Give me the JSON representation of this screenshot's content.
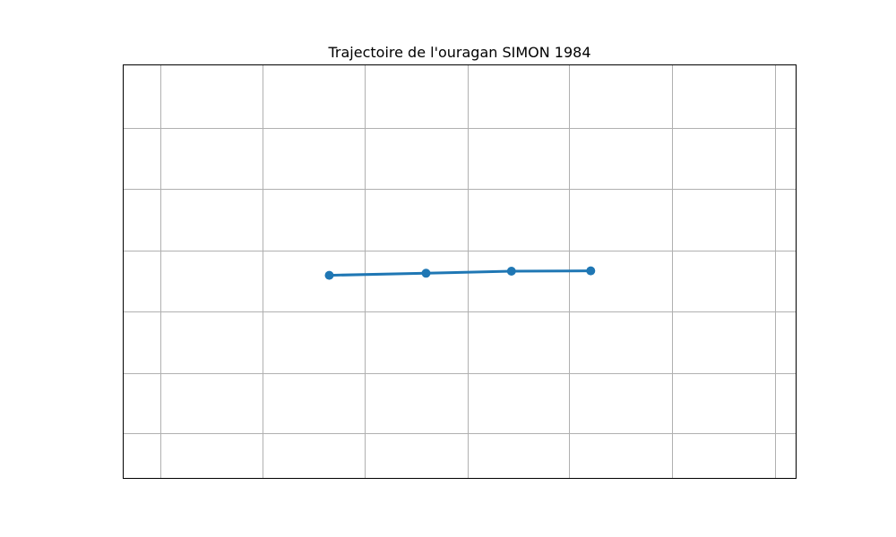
{
  "chart_data": {
    "type": "line",
    "title": "Trajectoire de l'ouragan SIMON 1984",
    "xlabel": "",
    "ylabel": "",
    "xlim": [
      0,
      100
    ],
    "ylim": [
      0,
      100
    ],
    "xgrid": [
      5.5,
      20.7,
      35.9,
      51.2,
      66.3,
      81.6,
      96.9
    ],
    "ygrid": [
      84.8,
      70.0,
      55.2,
      40.3,
      25.3,
      10.9
    ],
    "grid": true,
    "tick_labels_visible": false,
    "color": "#1f77b4",
    "series": [
      {
        "marker": "circle",
        "x": [
          30.6,
          45.0,
          57.7,
          69.5
        ],
        "y": [
          49.1,
          49.6,
          50.1,
          50.2
        ]
      }
    ]
  }
}
